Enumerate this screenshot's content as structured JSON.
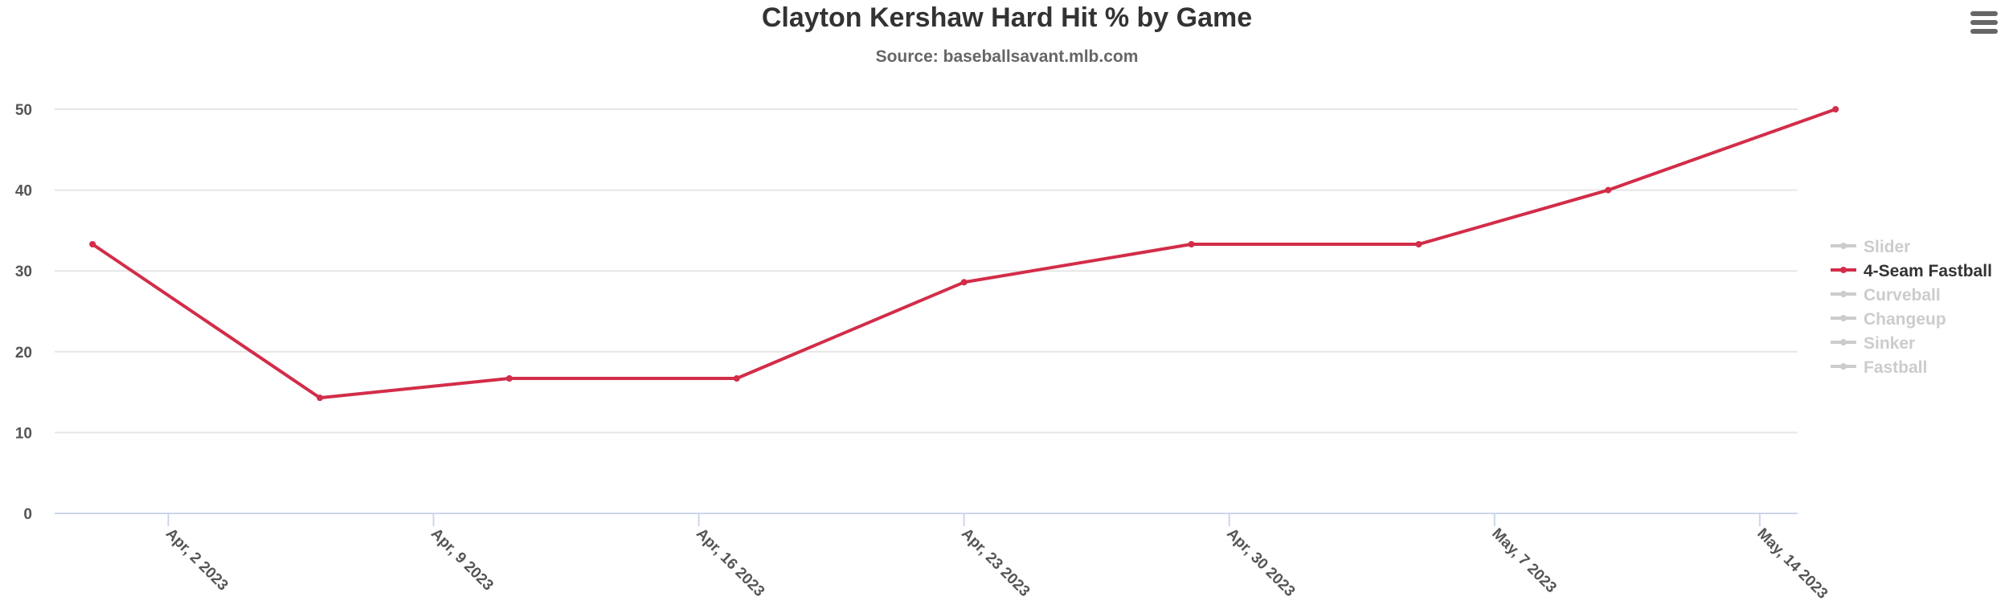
{
  "chart_data": {
    "type": "line",
    "title": "Clayton Kershaw Hard Hit % by Game",
    "subtitle": "Source: baseballsavant.mlb.com",
    "xlabel": "",
    "ylabel": "",
    "x_axis": {
      "type": "datetime",
      "range": [
        "2023-03-30",
        "2023-05-15"
      ],
      "ticks": [
        {
          "date": "2023-04-02",
          "label": "Apr, 2 2023"
        },
        {
          "date": "2023-04-09",
          "label": "Apr, 9 2023"
        },
        {
          "date": "2023-04-16",
          "label": "Apr, 16 2023"
        },
        {
          "date": "2023-04-23",
          "label": "Apr, 23 2023"
        },
        {
          "date": "2023-04-30",
          "label": "Apr, 30 2023"
        },
        {
          "date": "2023-05-07",
          "label": "May, 7 2023"
        },
        {
          "date": "2023-05-14",
          "label": "May, 14 2023"
        }
      ]
    },
    "ylim": [
      0,
      50
    ],
    "y_ticks": [
      0,
      10,
      20,
      30,
      40,
      50
    ],
    "grid": true,
    "legend": {
      "placement": "right",
      "active_color": "#333333",
      "inactive_color": "#cccccc"
    },
    "series": [
      {
        "name": "Slider",
        "visible": false,
        "color": "#cccccc",
        "points": []
      },
      {
        "name": "4-Seam Fastball",
        "visible": true,
        "color": "#d22d49",
        "points": [
          {
            "x": "2023-03-31",
            "y": 33.3
          },
          {
            "x": "2023-04-06",
            "y": 14.3
          },
          {
            "x": "2023-04-11",
            "y": 16.7
          },
          {
            "x": "2023-04-17",
            "y": 16.7
          },
          {
            "x": "2023-04-23",
            "y": 28.6
          },
          {
            "x": "2023-04-29",
            "y": 33.3
          },
          {
            "x": "2023-05-05",
            "y": 33.3
          },
          {
            "x": "2023-05-10",
            "y": 40.0
          },
          {
            "x": "2023-05-16",
            "y": 50.0
          }
        ]
      },
      {
        "name": "Curveball",
        "visible": false,
        "color": "#cccccc",
        "points": []
      },
      {
        "name": "Changeup",
        "visible": false,
        "color": "#cccccc",
        "points": []
      },
      {
        "name": "Sinker",
        "visible": false,
        "color": "#cccccc",
        "points": []
      },
      {
        "name": "Fastball",
        "visible": false,
        "color": "#cccccc",
        "points": []
      }
    ]
  },
  "menu": {
    "icon": "hamburger-menu-icon"
  }
}
